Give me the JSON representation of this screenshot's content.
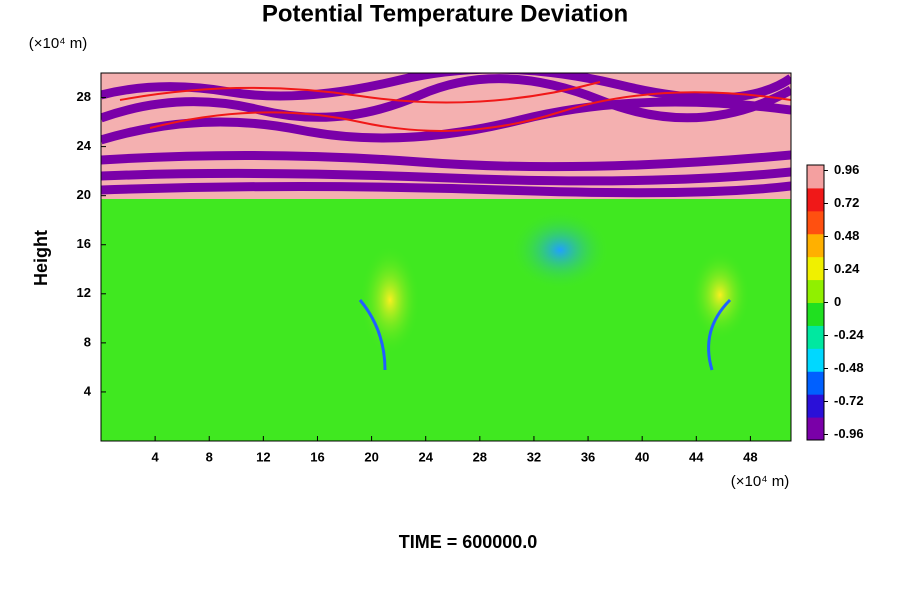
{
  "chart_data": {
    "type": "heatmap",
    "title": "Potential Temperature Deviation",
    "ylabel": "Height",
    "x_unit_label": "(×10⁴ m)",
    "y_unit_label": "(×10⁴ m)",
    "footer": "TIME = 600000.0",
    "xlim": [
      0,
      51
    ],
    "xticks": [
      4,
      8,
      12,
      16,
      20,
      24,
      28,
      32,
      36,
      40,
      44,
      48
    ],
    "ylim": [
      0,
      30
    ],
    "yticks": [
      4,
      8,
      12,
      16,
      20,
      24,
      28
    ],
    "clim": [
      -1,
      1
    ],
    "cticks": [
      -0.96,
      -0.72,
      -0.48,
      -0.24,
      0,
      0.24,
      0.48,
      0.72,
      0.96
    ],
    "colormap": [
      "#7a00a8",
      "#2a10d8",
      "#0060ff",
      "#00d8ff",
      "#00e8a0",
      "#20e020",
      "#90f000",
      "#f0f000",
      "#ffb000",
      "#ff5010",
      "#f01818",
      "#f4a0a0"
    ]
  }
}
